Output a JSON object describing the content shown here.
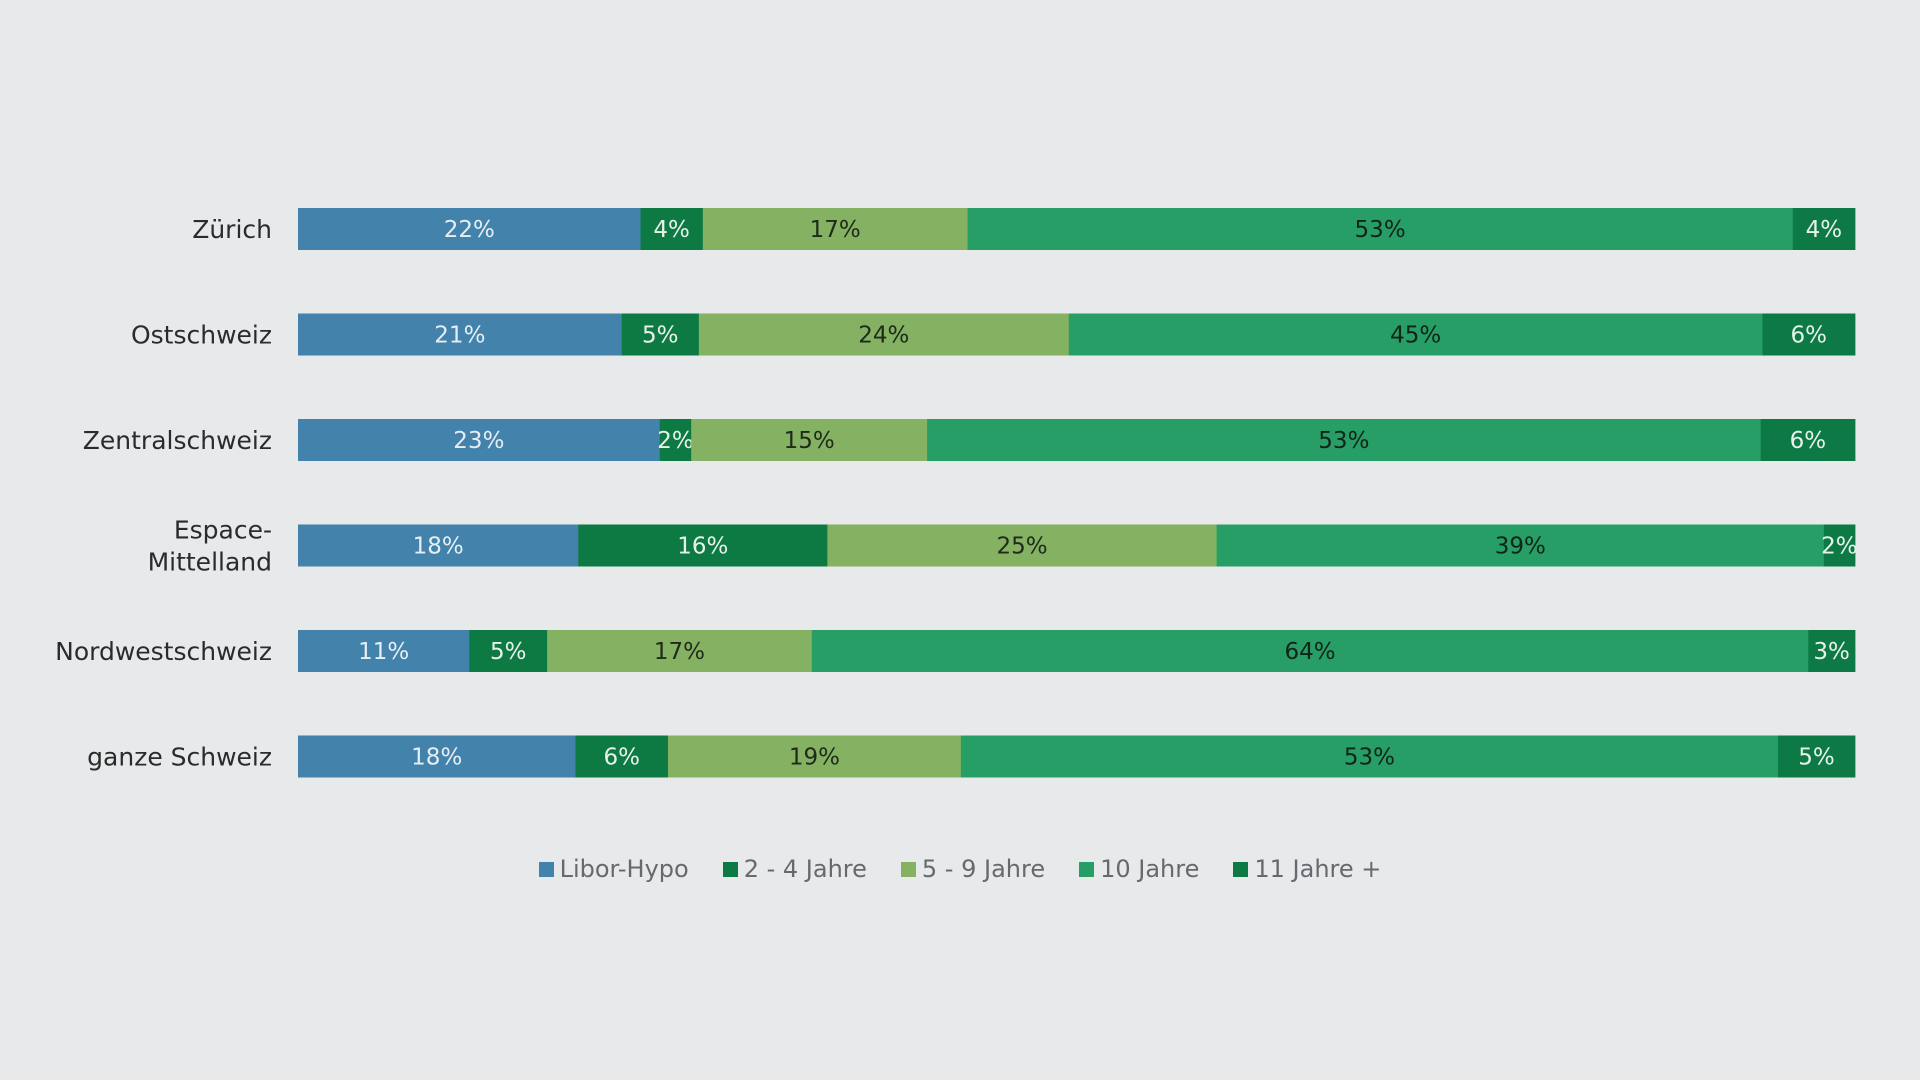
{
  "chart_data": {
    "type": "bar",
    "orientation": "horizontal",
    "stacked": true,
    "categories": [
      "Zürich",
      "Ostschweiz",
      "Zentralschweiz",
      "Espace-Mittelland",
      "Nordwestschweiz",
      "ganze Schweiz"
    ],
    "category_lines": [
      [
        "Zürich"
      ],
      [
        "Ostschweiz"
      ],
      [
        "Zentralschweiz"
      ],
      [
        "Espace-",
        "Mittelland"
      ],
      [
        "Nordwestschweiz"
      ],
      [
        "ganze Schweiz"
      ]
    ],
    "series": [
      {
        "name": "Libor-Hypo",
        "color": "#4282ab",
        "label_color": "#e6eef5",
        "values": [
          22,
          21,
          23,
          18,
          11,
          18
        ]
      },
      {
        "name": "2 - 4 Jahre",
        "color": "#0e7a43",
        "label_color": "#e6f2ea",
        "values": [
          4,
          5,
          2,
          16,
          5,
          6
        ]
      },
      {
        "name": "5 - 9 Jahre",
        "color": "#84b162",
        "label_color": "#1f2a1a",
        "values": [
          17,
          24,
          15,
          25,
          17,
          19
        ]
      },
      {
        "name": "10 Jahre",
        "color": "#279e66",
        "label_color": "#102418",
        "values": [
          53,
          45,
          53,
          39,
          64,
          53
        ]
      },
      {
        "name": "11 Jahre +",
        "color": "#0d7a46",
        "label_color": "#e6f2ea",
        "values": [
          4,
          6,
          6,
          2,
          3,
          5
        ]
      }
    ],
    "value_suffix": "%",
    "xlim": [
      0,
      100
    ],
    "title": "",
    "xlabel": "",
    "ylabel": "",
    "grid": false,
    "legend_position": "bottom-center"
  }
}
